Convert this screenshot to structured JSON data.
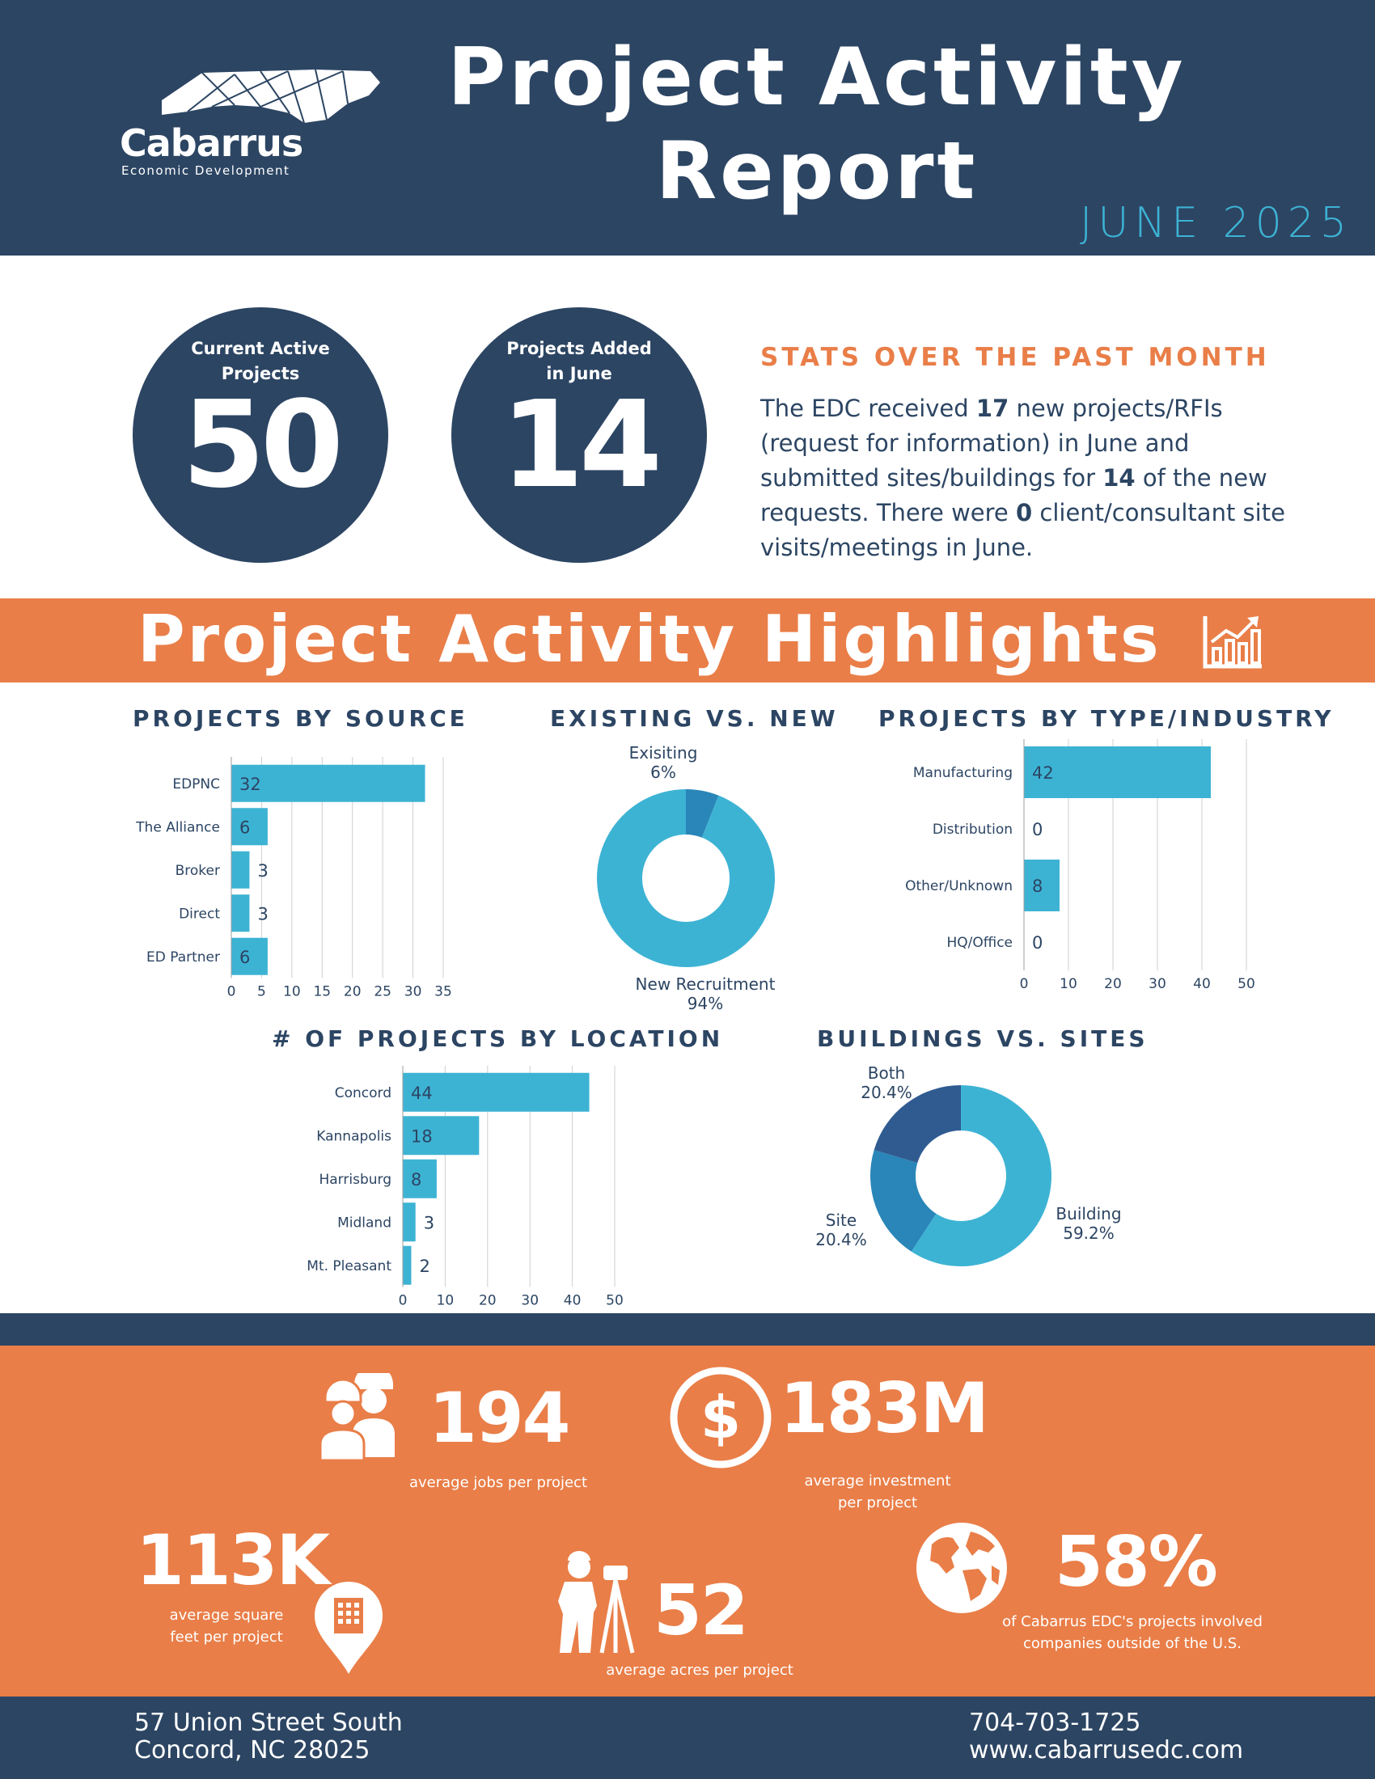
{
  "header": {
    "logo_name": "Cabarrus",
    "logo_sub": "Economic Development",
    "title_line1": "Project Activity",
    "title_line2": "Report",
    "month": "JUNE 2025"
  },
  "kpis": {
    "active_label_1": "Current Active",
    "active_label_2": "Projects",
    "active_value": "50",
    "added_label_1": "Projects Added",
    "added_label_2": "in June",
    "added_value": "14"
  },
  "stats": {
    "title": "STATS OVER THE PAST MONTH",
    "t1": "The EDC received ",
    "b1": "17",
    "t2": " new projects/RFIs (request for information) in June and submitted sites/buildings for ",
    "b2": "14",
    "t3": " of the new requests. There were ",
    "b3": "0",
    "t4": " client/consultant site visits/meetings in June."
  },
  "highlights_title": "Project Activity Highlights",
  "colors": {
    "navy": "#2c4563",
    "orange": "#e97e48",
    "bar": "#3db3d4",
    "dark_teal": "#2a86b8",
    "slate": "#2f5b91"
  },
  "chart_data": [
    {
      "id": "source",
      "type": "bar",
      "orientation": "horizontal",
      "title": "PROJECTS BY SOURCE",
      "categories": [
        "EDPNC",
        "The Alliance",
        "Broker",
        "Direct",
        "ED Partner"
      ],
      "values": [
        32,
        6,
        3,
        3,
        6
      ],
      "xlim": [
        0,
        35
      ],
      "xticks": [
        0,
        5,
        10,
        15,
        20,
        25,
        30,
        35
      ],
      "grid": true
    },
    {
      "id": "existing",
      "type": "pie",
      "donut": true,
      "title": "EXISTING VS. NEW",
      "slices": [
        {
          "label": "Exisiting",
          "pct_label": "6%",
          "value": 6
        },
        {
          "label": "New Recruitment",
          "pct_label": "94%",
          "value": 94
        }
      ]
    },
    {
      "id": "type",
      "type": "bar",
      "orientation": "horizontal",
      "title": "PROJECTS BY TYPE/INDUSTRY",
      "categories": [
        "Manufacturing",
        "Distribution",
        "Other/Unknown",
        "HQ/Office"
      ],
      "values": [
        42,
        0,
        8,
        0
      ],
      "xlim": [
        0,
        50
      ],
      "xticks": [
        0,
        10,
        20,
        30,
        40,
        50
      ],
      "grid": true
    },
    {
      "id": "location",
      "type": "bar",
      "orientation": "horizontal",
      "title": "# OF PROJECTS BY LOCATION",
      "categories": [
        "Concord",
        "Kannapolis",
        "Harrisburg",
        "Midland",
        "Mt. Pleasant"
      ],
      "values": [
        44,
        18,
        8,
        3,
        2
      ],
      "xlim": [
        0,
        50
      ],
      "xticks": [
        0,
        10,
        20,
        30,
        40,
        50
      ],
      "grid": true
    },
    {
      "id": "buildings",
      "type": "pie",
      "donut": true,
      "title": "BUILDINGS VS. SITES",
      "slices": [
        {
          "label": "Building",
          "pct_label": "59.2%",
          "value": 59.2
        },
        {
          "label": "Site",
          "pct_label": "20.4%",
          "value": 20.4
        },
        {
          "label": "Both",
          "pct_label": "20.4%",
          "value": 20.4
        }
      ]
    }
  ],
  "bottom": {
    "jobs_value": "194",
    "jobs_caption": "average jobs per project",
    "investment_value": "183M",
    "investment_caption_1": "average investment",
    "investment_caption_2": "per project",
    "sqft_value": "113K",
    "sqft_caption_1": "average square",
    "sqft_caption_2": "feet per project",
    "acres_value": "52",
    "acres_caption": "average acres per project",
    "intl_value": "58%",
    "intl_caption_1": "of Cabarrus EDC's projects involved",
    "intl_caption_2": "companies outside of the U.S.",
    "icons": [
      "workers-icon",
      "dollar-icon",
      "building-pin-icon",
      "surveyor-icon",
      "globe-icon"
    ]
  },
  "footer": {
    "address_1": "57 Union Street South",
    "address_2": "Concord, NC 28025",
    "phone": "704-703-1725",
    "website": "www.cabarrusedc.com"
  }
}
